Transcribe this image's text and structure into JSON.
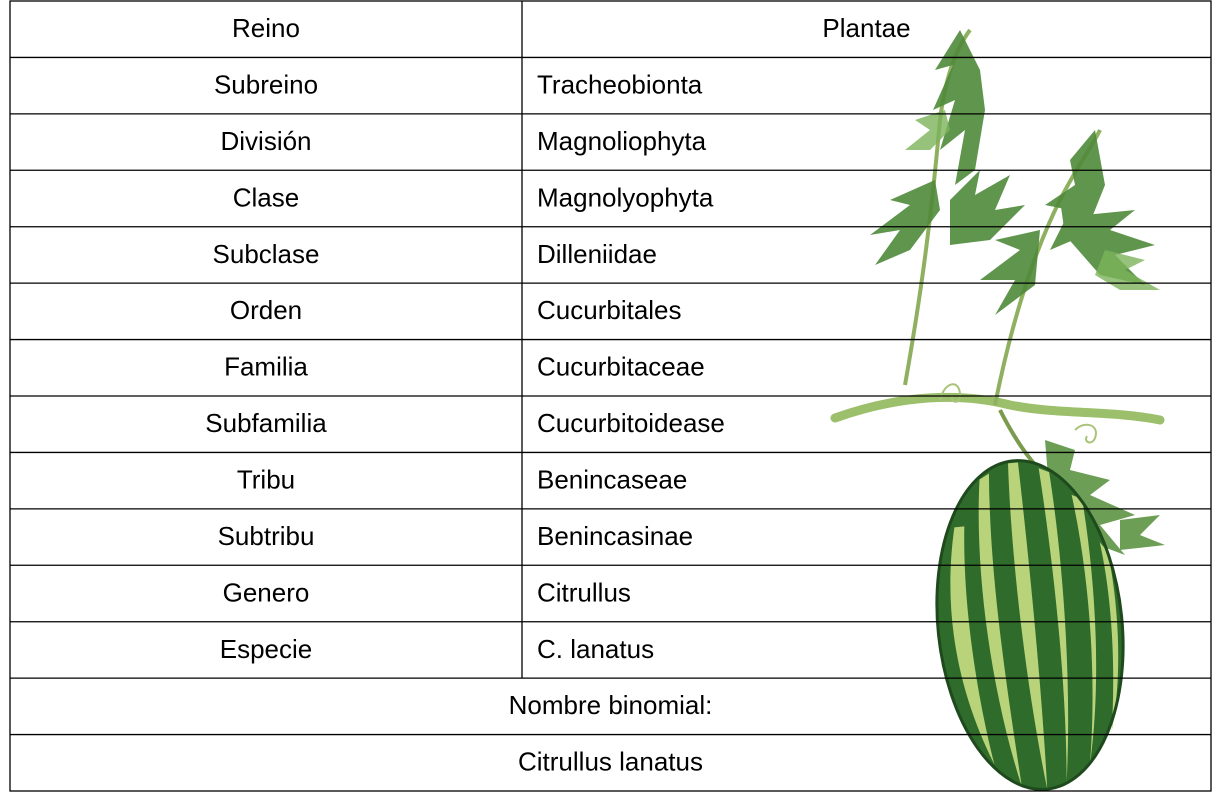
{
  "table": {
    "rows": [
      [
        "Reino",
        "Plantae"
      ],
      [
        "Subreino",
        "Tracheobionta"
      ],
      [
        "División",
        "Magnoliophyta"
      ],
      [
        "Clase",
        "Magnolyophyta"
      ],
      [
        "Subclase",
        "Dilleniidae"
      ],
      [
        "Orden",
        "Cucurbitales"
      ],
      [
        "Familia",
        "Cucurbitaceae"
      ],
      [
        "Subfamilia",
        "Cucurbitoidease"
      ],
      [
        "Tribu",
        "Benincaseae"
      ],
      [
        "Subtribu",
        "Benincasinae"
      ],
      [
        "Genero",
        "Citrullus"
      ],
      [
        "Especie",
        "C. lanatus"
      ]
    ],
    "footer": [
      "Nombre binomial:",
      "Citrullus lanatus"
    ]
  }
}
